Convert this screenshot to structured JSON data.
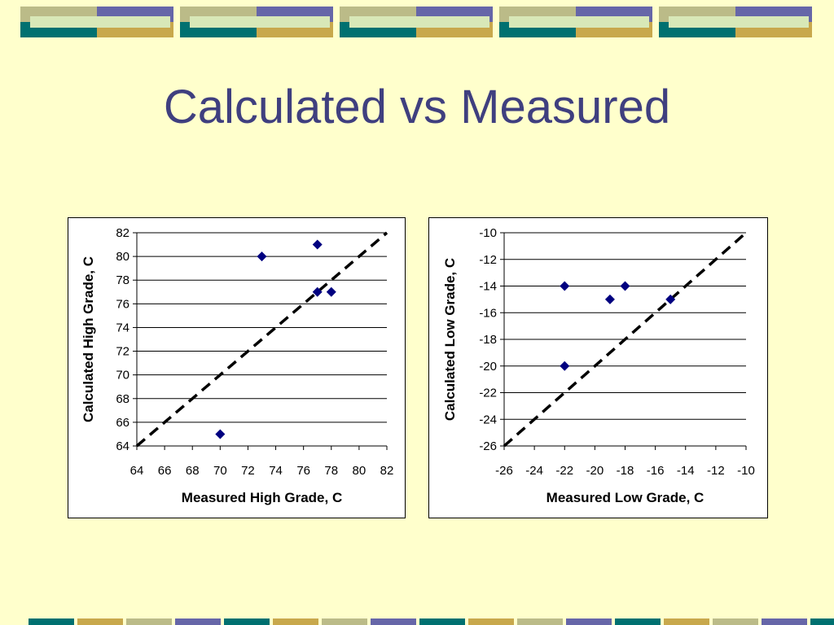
{
  "slide": {
    "title": "Calculated vs Measured"
  },
  "colors": {
    "background": "#FFFFCC",
    "title": "#3F3F7F",
    "marker": "#000080",
    "band_teal": "#007070",
    "band_gold": "#C8A84C",
    "band_olive": "#BBBB88",
    "band_purple": "#6666A8",
    "band_pale": "#D8E8B8"
  },
  "chart_data": [
    {
      "type": "scatter",
      "xlabel": "Measured High Grade, C",
      "ylabel": "Calculated High Grade, C",
      "xlim": [
        64,
        82
      ],
      "ylim": [
        64,
        82
      ],
      "xticks": [
        64,
        66,
        68,
        70,
        72,
        74,
        76,
        78,
        80,
        82
      ],
      "yticks": [
        64,
        66,
        68,
        70,
        72,
        74,
        76,
        78,
        80,
        82
      ],
      "grid": "horizontal",
      "series": [
        {
          "marker": "diamond",
          "points": [
            [
              70,
              65
            ],
            [
              73,
              80
            ],
            [
              77,
              81
            ],
            [
              77,
              77
            ],
            [
              78,
              77
            ]
          ]
        }
      ],
      "reference_line": {
        "style": "dashed",
        "from": [
          64,
          64
        ],
        "to": [
          82,
          82
        ]
      }
    },
    {
      "type": "scatter",
      "xlabel": "Measured Low Grade, C",
      "ylabel": "Calculated Low Grade, C",
      "xlim": [
        -26,
        -10
      ],
      "ylim": [
        -26,
        -10
      ],
      "xticks": [
        -26,
        -24,
        -22,
        -20,
        -18,
        -16,
        -14,
        -12,
        -10
      ],
      "yticks": [
        -26,
        -24,
        -22,
        -20,
        -18,
        -16,
        -14,
        -12,
        -10
      ],
      "grid": "horizontal",
      "series": [
        {
          "marker": "diamond",
          "points": [
            [
              -22,
              -14
            ],
            [
              -22,
              -20
            ],
            [
              -19,
              -15
            ],
            [
              -18,
              -14
            ],
            [
              -15,
              -15
            ]
          ]
        }
      ],
      "reference_line": {
        "style": "dashed",
        "from": [
          -26,
          -26
        ],
        "to": [
          -10,
          -10
        ]
      }
    }
  ]
}
